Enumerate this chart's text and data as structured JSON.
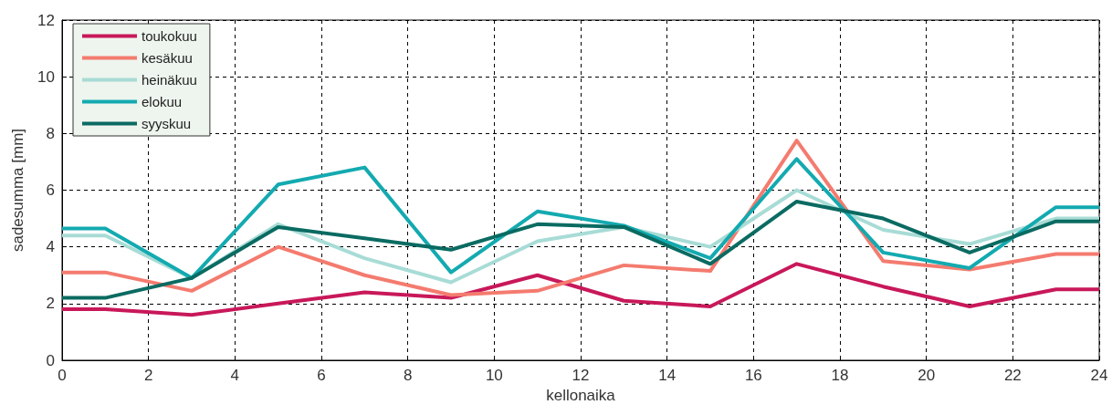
{
  "chart_data": {
    "type": "line",
    "xlabel": "kellonaika",
    "ylabel": "sadesumma [mm]",
    "x": [
      0,
      1,
      3,
      5,
      7,
      9,
      11,
      13,
      15,
      17,
      19,
      21,
      23,
      24
    ],
    "series": [
      {
        "name": "toukokuu",
        "color": "#c8185a",
        "values": [
          1.8,
          1.8,
          1.6,
          2.0,
          2.4,
          2.2,
          3.0,
          2.1,
          1.9,
          3.4,
          2.6,
          1.9,
          2.5,
          2.5
        ]
      },
      {
        "name": "kesäkuu",
        "color": "#f47b6f",
        "values": [
          3.1,
          3.1,
          2.45,
          4.0,
          3.0,
          2.3,
          2.45,
          3.35,
          3.15,
          7.75,
          3.5,
          3.2,
          3.75,
          3.75
        ]
      },
      {
        "name": "heinäkuu",
        "color": "#a8dcd6",
        "values": [
          4.4,
          4.4,
          2.9,
          4.8,
          3.6,
          2.75,
          4.2,
          4.7,
          4.0,
          6.0,
          4.6,
          4.1,
          5.0,
          5.0
        ]
      },
      {
        "name": "elokuu",
        "color": "#13aab0",
        "values": [
          4.65,
          4.65,
          2.9,
          6.2,
          6.8,
          3.1,
          5.25,
          4.75,
          3.6,
          7.1,
          3.8,
          3.25,
          5.4,
          5.4
        ]
      },
      {
        "name": "syyskuu",
        "color": "#0a6b62",
        "values": [
          2.2,
          2.2,
          2.9,
          4.7,
          4.3,
          3.9,
          4.8,
          4.7,
          3.4,
          5.6,
          5.0,
          3.8,
          4.9,
          4.9
        ]
      }
    ],
    "xlim": [
      0,
      24
    ],
    "xticks": [
      0,
      2,
      4,
      6,
      8,
      10,
      12,
      14,
      16,
      18,
      20,
      22,
      24
    ],
    "ylim": [
      0,
      12
    ],
    "yticks": [
      0,
      2,
      4,
      6,
      8,
      10,
      12
    ],
    "grid": true,
    "legend": "top left",
    "marker": "none",
    "line_style": "solid"
  }
}
